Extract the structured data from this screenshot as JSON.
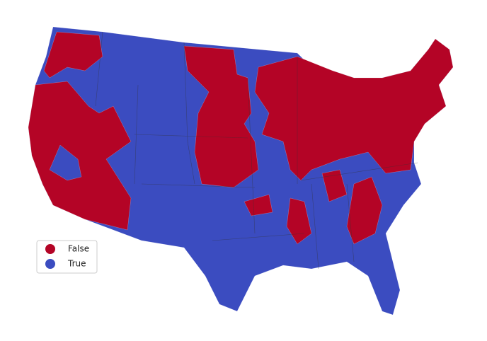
{
  "legend": {
    "items": [
      {
        "label": "False",
        "color": "#b40426"
      },
      {
        "label": "True",
        "color": "#3b4cc0"
      }
    ]
  }
}
